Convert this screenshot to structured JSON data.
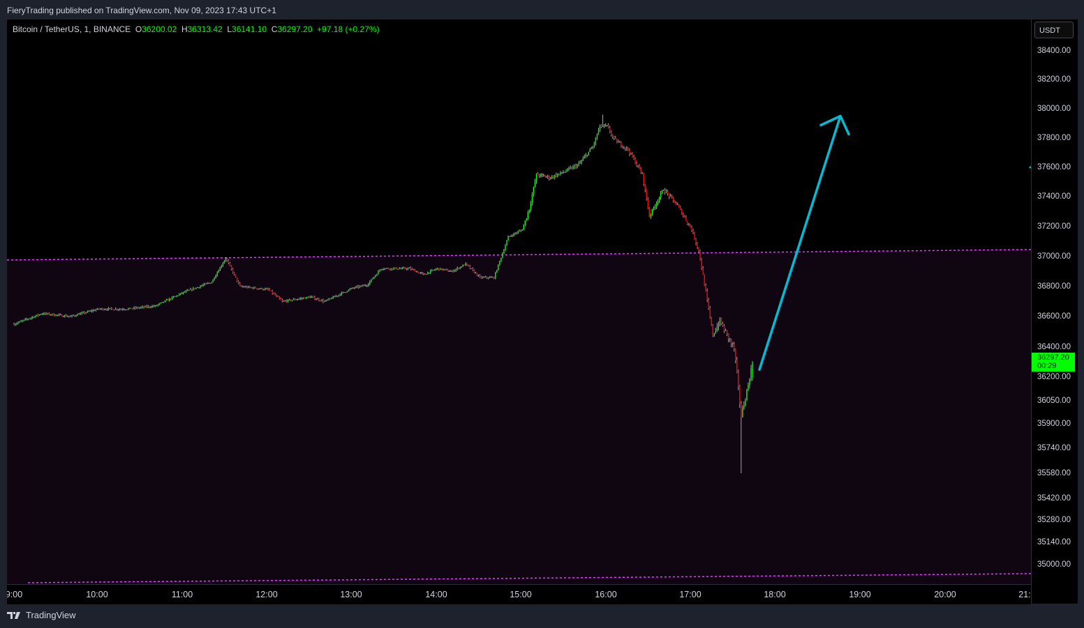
{
  "header": {
    "published": "FieryTrading published on TradingView.com, Nov 09, 2023 17:43 UTC+1"
  },
  "legend": {
    "symbol": "Bitcoin / TetherUS, 1, BINANCE",
    "open_label": "O",
    "open": "36200.02",
    "high_label": "H",
    "high": "36313.42",
    "low_label": "L",
    "low": "36141.10",
    "close_label": "C",
    "close": "36297.20",
    "change": "+97.18 (+0.27%)"
  },
  "price_axis": {
    "currency": "USDT",
    "last_price": "36297.20",
    "countdown": "00:29",
    "ticks": [
      "38400.00",
      "38200.00",
      "38000.00",
      "37800.00",
      "37600.00",
      "37400.00",
      "37200.00",
      "37000.00",
      "36800.00",
      "36600.00",
      "36400.00",
      "36200.00",
      "36050.00",
      "35900.00",
      "35740.00",
      "35580.00",
      "35420.00",
      "35280.00",
      "35140.00",
      "35000.00"
    ]
  },
  "time_axis": {
    "ticks": [
      "9:00",
      "10:00",
      "11:00",
      "12:00",
      "13:00",
      "14:00",
      "15:00",
      "16:00",
      "17:00",
      "18:00",
      "19:00",
      "20:00",
      "21:"
    ]
  },
  "footer": {
    "brand": "TradingView"
  },
  "colors": {
    "up": "#00ff00",
    "down": "#ff0000",
    "wick": "#a8a8b0",
    "level_line": "#e040fb",
    "arrow": "#00bcd4",
    "zone": "#0f0612"
  },
  "chart_data": {
    "type": "candlestick",
    "interval": "1 minute",
    "symbol": "BTCUSDT",
    "approx_close_path": [
      [
        "09:00",
        36550
      ],
      [
        "09:20",
        36620
      ],
      [
        "09:40",
        36600
      ],
      [
        "10:00",
        36650
      ],
      [
        "10:20",
        36650
      ],
      [
        "10:40",
        36670
      ],
      [
        "11:00",
        36760
      ],
      [
        "11:20",
        36830
      ],
      [
        "11:30",
        36990
      ],
      [
        "11:40",
        36800
      ],
      [
        "12:00",
        36780
      ],
      [
        "12:10",
        36700
      ],
      [
        "12:30",
        36730
      ],
      [
        "12:40",
        36700
      ],
      [
        "13:00",
        36790
      ],
      [
        "13:10",
        36810
      ],
      [
        "13:20",
        36920
      ],
      [
        "13:40",
        36920
      ],
      [
        "13:50",
        36880
      ],
      [
        "14:00",
        36920
      ],
      [
        "14:10",
        36900
      ],
      [
        "14:20",
        36950
      ],
      [
        "14:30",
        36860
      ],
      [
        "14:40",
        36860
      ],
      [
        "14:50",
        37130
      ],
      [
        "15:00",
        37180
      ],
      [
        "15:05",
        37320
      ],
      [
        "15:10",
        37550
      ],
      [
        "15:20",
        37530
      ],
      [
        "15:30",
        37570
      ],
      [
        "15:40",
        37620
      ],
      [
        "15:50",
        37740
      ],
      [
        "15:55",
        37880
      ],
      [
        "16:00",
        37880
      ],
      [
        "16:05",
        37790
      ],
      [
        "16:15",
        37720
      ],
      [
        "16:25",
        37550
      ],
      [
        "16:30",
        37270
      ],
      [
        "16:40",
        37450
      ],
      [
        "16:50",
        37340
      ],
      [
        "17:00",
        37180
      ],
      [
        "17:05",
        37040
      ],
      [
        "17:10",
        36760
      ],
      [
        "17:15",
        36480
      ],
      [
        "17:20",
        36570
      ],
      [
        "17:25",
        36480
      ],
      [
        "17:30",
        36390
      ],
      [
        "17:35",
        35950
      ],
      [
        "17:40",
        36150
      ],
      [
        "17:43",
        36297
      ]
    ],
    "lows": {
      "session_low": 35580
    },
    "highs": {
      "session_high": 37960
    },
    "level_lines": [
      {
        "price_start": 36980,
        "price_end": 37050,
        "style": "dotted"
      },
      {
        "price_start": 34950,
        "price_end": 34980,
        "style": "dotted"
      }
    ],
    "annotation": {
      "type": "arrow",
      "direction": "up",
      "from_price": 36250,
      "to_price": 37950
    }
  }
}
